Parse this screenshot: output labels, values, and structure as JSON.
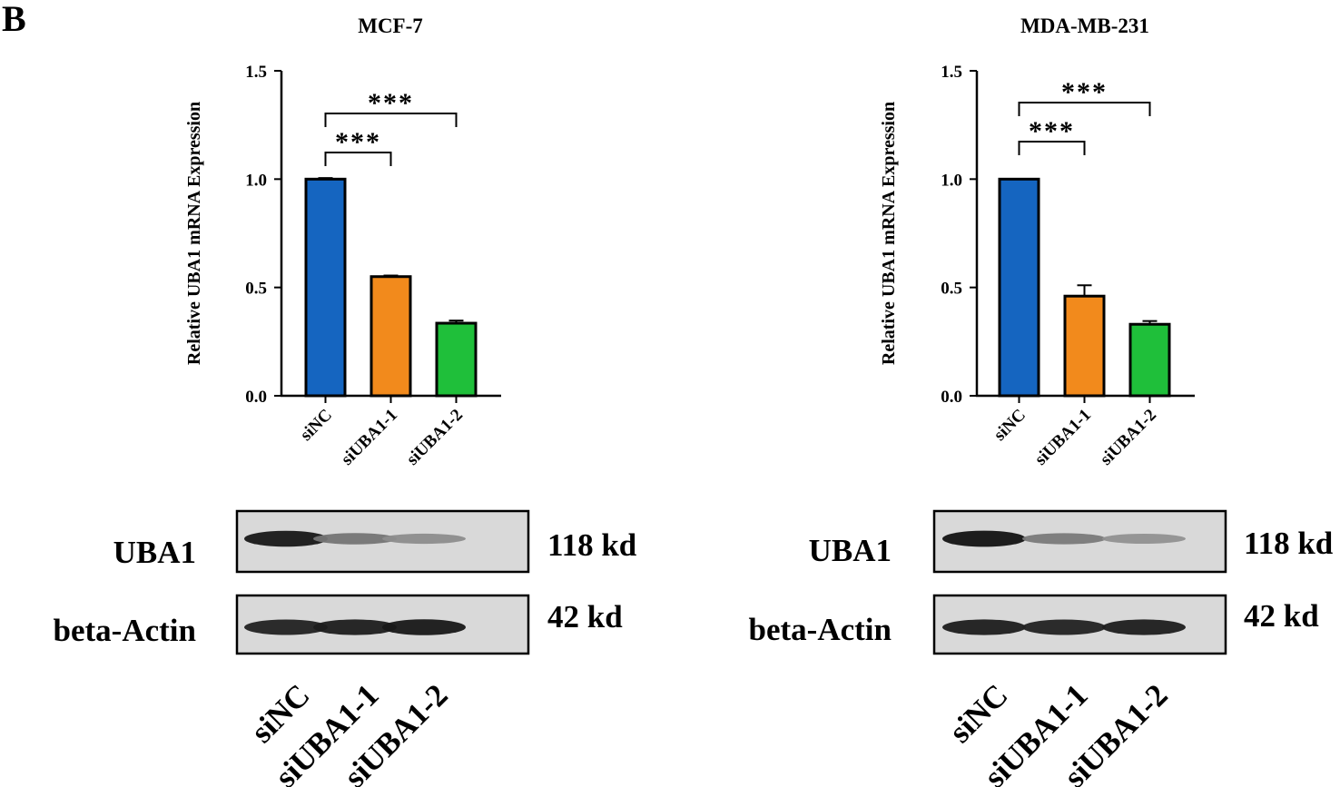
{
  "panel_label": "B",
  "chart_data": [
    {
      "type": "bar",
      "title": "MCF-7",
      "ylabel": "Relative UBA1 mRNA Expression",
      "xlabel": "",
      "ylim": [
        0,
        1.5
      ],
      "yticks": [
        "0.0",
        "0.5",
        "1.0",
        "1.5"
      ],
      "categories": [
        "siNC",
        "siUBA1-1",
        "siUBA1-2"
      ],
      "values": [
        1.0,
        0.55,
        0.335
      ],
      "errors": [
        0.005,
        0.005,
        0.012
      ],
      "colors": [
        "#1565c0",
        "#f28a1c",
        "#1fbf3a"
      ],
      "significance": [
        {
          "from": 0,
          "to": 1,
          "label": "***",
          "level": 1
        },
        {
          "from": 0,
          "to": 2,
          "label": "***",
          "level": 2
        }
      ]
    },
    {
      "type": "bar",
      "title": "MDA-MB-231",
      "ylabel": "Relative UBA1 mRNA Expression",
      "xlabel": "",
      "ylim": [
        0,
        1.5
      ],
      "yticks": [
        "0.0",
        "0.5",
        "1.0",
        "1.5"
      ],
      "categories": [
        "siNC",
        "siUBA1-1",
        "siUBA1-2"
      ],
      "values": [
        1.0,
        0.46,
        0.33
      ],
      "errors": [
        0.0,
        0.05,
        0.015
      ],
      "colors": [
        "#1565c0",
        "#f28a1c",
        "#1fbf3a"
      ],
      "significance": [
        {
          "from": 0,
          "to": 1,
          "label": "***",
          "level": 1
        },
        {
          "from": 0,
          "to": 2,
          "label": "***",
          "level": 2
        }
      ]
    }
  ],
  "blots": [
    {
      "rows": [
        {
          "protein": "UBA1",
          "size": "118 kd",
          "intensities": [
            0.95,
            0.45,
            0.32
          ]
        },
        {
          "protein": "beta-Actin",
          "size": "42 kd",
          "intensities": [
            0.9,
            0.92,
            0.95
          ]
        }
      ],
      "lanes": [
        "siNC",
        "siUBA1-1",
        "siUBA1-2"
      ]
    },
    {
      "rows": [
        {
          "protein": "UBA1",
          "size": "118 kd",
          "intensities": [
            0.98,
            0.42,
            0.3
          ]
        },
        {
          "protein": "beta-Actin",
          "size": "42 kd",
          "intensities": [
            0.92,
            0.9,
            0.92
          ]
        }
      ],
      "lanes": [
        "siNC",
        "siUBA1-1",
        "siUBA1-2"
      ]
    }
  ]
}
